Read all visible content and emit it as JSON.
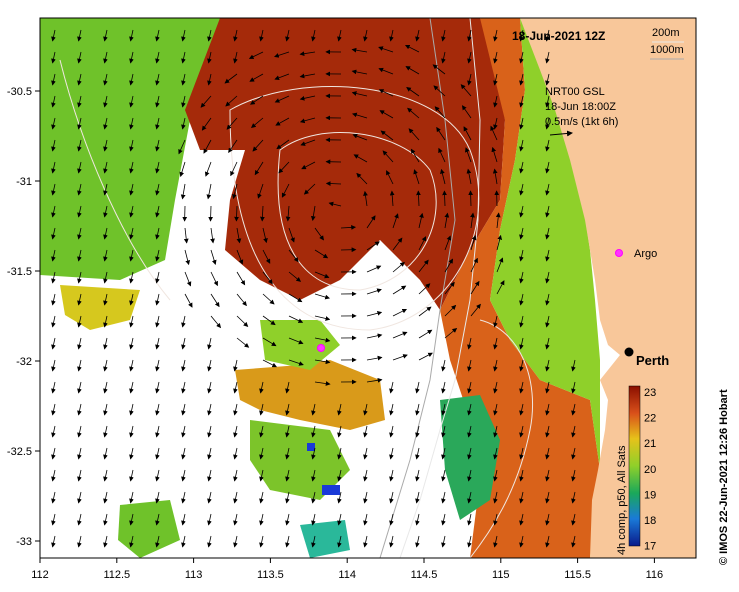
{
  "title": "18-Jun-2021 12Z",
  "depth_legend": [
    "200m",
    "1000m"
  ],
  "current_info": {
    "line1": "NRT00 GSL",
    "line2": "18-Jun 18:00Z",
    "line3": "0.5m/s (1kt 6h)"
  },
  "markers": {
    "argo_label": "Argo",
    "city_label": "Perth"
  },
  "axes": {
    "lon_ticks": [
      "112",
      "112.5",
      "113",
      "113.5",
      "114",
      "114.5",
      "115",
      "115.5",
      "116"
    ],
    "lat_ticks": [
      "-30.5",
      "-31",
      "-31.5",
      "-32",
      "-32.5",
      "-33"
    ]
  },
  "colorbar": {
    "ticks": [
      "23",
      "22",
      "21",
      "20",
      "19",
      "18",
      "17"
    ],
    "label": "4h comp, p50, All Sats",
    "min": 17,
    "max": 23
  },
  "credit": "© IMOS 22-Jun-2021 12:26 Hobart",
  "colors": {
    "land": "#f8c79a",
    "warm": "#a52a0a",
    "orange": "#e39a1a",
    "yellow": "#e6d21a",
    "green": "#6fc22a",
    "cool": "#1a7ad8"
  }
}
